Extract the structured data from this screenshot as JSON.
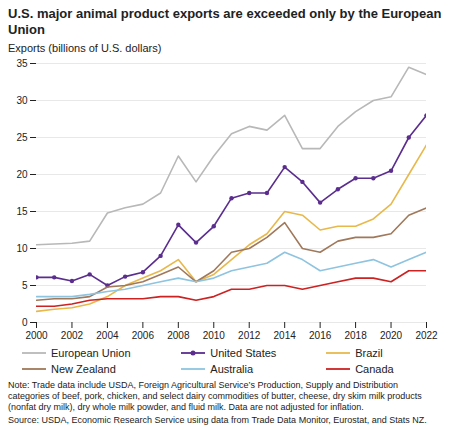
{
  "chart_data": {
    "type": "line",
    "title": "U.S. major animal product exports are exceeded only by the European Union",
    "ylabel": "Exports (billions of U.S. dollars)",
    "x": [
      2000,
      2001,
      2002,
      2003,
      2004,
      2005,
      2006,
      2007,
      2008,
      2009,
      2010,
      2011,
      2012,
      2013,
      2014,
      2015,
      2016,
      2017,
      2018,
      2019,
      2020,
      2021,
      2022
    ],
    "series": [
      {
        "name": "European Union",
        "color": "#b8b8b8",
        "values": [
          10.5,
          10.6,
          10.7,
          11.0,
          14.8,
          15.5,
          16.0,
          17.5,
          22.5,
          19.0,
          22.5,
          25.5,
          26.5,
          26.0,
          28.0,
          23.5,
          23.5,
          26.5,
          28.5,
          30.0,
          30.5,
          34.5,
          33.5
        ]
      },
      {
        "name": "United States",
        "color": "#5b2d8e",
        "marker": "circle",
        "values": [
          6.1,
          6.1,
          5.6,
          6.5,
          5.0,
          6.2,
          6.8,
          9.0,
          13.2,
          10.8,
          13.0,
          16.8,
          17.5,
          17.5,
          21.0,
          19.0,
          16.2,
          18.0,
          19.5,
          19.5,
          20.5,
          25.0,
          28.0
        ]
      },
      {
        "name": "Brazil",
        "color": "#e8b84b",
        "values": [
          1.5,
          1.8,
          2.0,
          2.5,
          3.5,
          5.0,
          6.0,
          7.0,
          8.5,
          5.5,
          6.5,
          8.5,
          10.5,
          12.0,
          15.0,
          14.5,
          12.5,
          13.0,
          13.0,
          14.0,
          16.0,
          20.0,
          24.0
        ]
      },
      {
        "name": "New Zealand",
        "color": "#a0785a",
        "values": [
          3.0,
          3.2,
          3.2,
          3.5,
          4.8,
          5.0,
          5.5,
          6.5,
          7.5,
          5.5,
          7.0,
          9.5,
          10.0,
          11.5,
          13.5,
          10.0,
          9.5,
          11.0,
          11.5,
          11.5,
          12.0,
          14.5,
          15.5
        ]
      },
      {
        "name": "Australia",
        "color": "#8ec4e0",
        "values": [
          3.5,
          3.5,
          3.5,
          3.8,
          4.2,
          4.5,
          5.0,
          5.5,
          6.0,
          5.5,
          6.0,
          7.0,
          7.5,
          8.0,
          9.5,
          8.5,
          7.0,
          7.5,
          8.0,
          8.5,
          7.5,
          8.5,
          9.5
        ]
      },
      {
        "name": "Canada",
        "color": "#cc2222",
        "values": [
          2.2,
          2.2,
          2.5,
          3.0,
          3.2,
          3.2,
          3.2,
          3.5,
          3.5,
          3.0,
          3.5,
          4.5,
          4.5,
          5.0,
          5.0,
          4.5,
          5.0,
          5.5,
          6.0,
          6.0,
          5.5,
          7.0,
          7.0
        ]
      }
    ],
    "xlim": [
      2000,
      2022
    ],
    "xticks": [
      2000,
      2002,
      2004,
      2006,
      2008,
      2010,
      2012,
      2014,
      2016,
      2018,
      2020,
      2022
    ],
    "ylim": [
      0,
      35
    ],
    "yticks": [
      0,
      5,
      10,
      15,
      20,
      25,
      30,
      35
    ],
    "grid": true,
    "legend": "bottom",
    "annotations": [
      "Note: Trade data include USDA, Foreign Agricultural Service’s Production, Supply and Distribution categories of beef, pork, chicken, and select dairy commodities of butter, cheese, dry skim milk products (nonfat dry milk), dry whole milk powder, and fluid milk. Data are not adjusted for inflation.",
      "Source: USDA, Economic Research Service using data from Trade Data Monitor, Eurostat, and Stats NZ."
    ]
  }
}
